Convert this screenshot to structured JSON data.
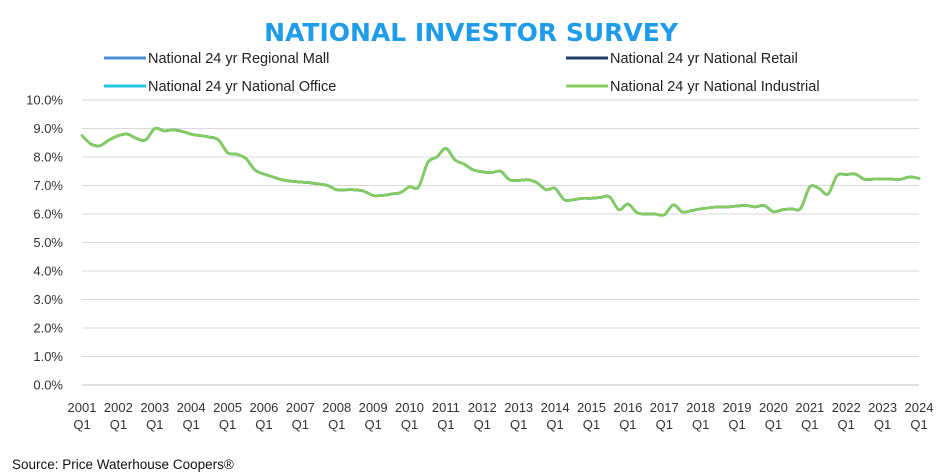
{
  "chart_data": {
    "type": "line",
    "title": "NATIONAL INVESTOR SURVEY",
    "source": "Source: Price Waterhouse Coopers®",
    "ylim": [
      0,
      10
    ],
    "y_tick_labels": [
      "0.0%",
      "1.0%",
      "2.0%",
      "3.0%",
      "4.0%",
      "5.0%",
      "6.0%",
      "7.0%",
      "8.0%",
      "9.0%",
      "10.0%"
    ],
    "x_tick_labels": [
      {
        "year": "2001",
        "quarter": "Q1"
      },
      {
        "year": "2002",
        "quarter": "Q1"
      },
      {
        "year": "2003",
        "quarter": "Q1"
      },
      {
        "year": "2004",
        "quarter": "Q1"
      },
      {
        "year": "2005",
        "quarter": "Q1"
      },
      {
        "year": "2006",
        "quarter": "Q1"
      },
      {
        "year": "2007",
        "quarter": "Q1"
      },
      {
        "year": "2008",
        "quarter": "Q1"
      },
      {
        "year": "2009",
        "quarter": "Q1"
      },
      {
        "year": "2010",
        "quarter": "Q1"
      },
      {
        "year": "2011",
        "quarter": "Q1"
      },
      {
        "year": "2012",
        "quarter": "Q1"
      },
      {
        "year": "2013",
        "quarter": "Q1"
      },
      {
        "year": "2014",
        "quarter": "Q1"
      },
      {
        "year": "2015",
        "quarter": "Q1"
      },
      {
        "year": "2016",
        "quarter": "Q1"
      },
      {
        "year": "2017",
        "quarter": "Q1"
      },
      {
        "year": "2018",
        "quarter": "Q1"
      },
      {
        "year": "2019",
        "quarter": "Q1"
      },
      {
        "year": "2020",
        "quarter": "Q1"
      },
      {
        "year": "2021",
        "quarter": "Q1"
      },
      {
        "year": "2022",
        "quarter": "Q1"
      },
      {
        "year": "2023",
        "quarter": "Q1"
      },
      {
        "year": "2024",
        "quarter": "Q1"
      }
    ],
    "grid": true,
    "legend_position": "top",
    "colors": {
      "title": "#1e9be9",
      "regional_mall": "#4a90d9",
      "national_retail": "#1f3f66",
      "national_office": "#22c7ee",
      "national_industrial": "#86cc5a",
      "grid": "#d9d9d9",
      "axis": "#bfbfbf"
    },
    "base_series": [
      [
        2001.0,
        8.75
      ],
      [
        2001.25,
        8.45
      ],
      [
        2001.5,
        8.4
      ],
      [
        2001.75,
        8.6
      ],
      [
        2002.0,
        8.75
      ],
      [
        2002.25,
        8.8
      ],
      [
        2002.5,
        8.65
      ],
      [
        2002.75,
        8.6
      ],
      [
        2003.0,
        9.0
      ],
      [
        2003.25,
        8.92
      ],
      [
        2003.5,
        8.95
      ],
      [
        2003.75,
        8.9
      ],
      [
        2004.0,
        8.8
      ],
      [
        2004.25,
        8.75
      ],
      [
        2004.5,
        8.7
      ],
      [
        2004.75,
        8.6
      ],
      [
        2005.0,
        8.15
      ],
      [
        2005.25,
        8.1
      ],
      [
        2005.5,
        7.95
      ],
      [
        2005.75,
        7.55
      ],
      [
        2006.0,
        7.4
      ],
      [
        2006.25,
        7.3
      ],
      [
        2006.5,
        7.2
      ],
      [
        2006.75,
        7.15
      ],
      [
        2007.0,
        7.12
      ],
      [
        2007.25,
        7.1
      ],
      [
        2007.5,
        7.05
      ],
      [
        2007.75,
        7.0
      ],
      [
        2008.0,
        6.85
      ],
      [
        2008.25,
        6.85
      ],
      [
        2008.5,
        6.85
      ],
      [
        2008.75,
        6.8
      ],
      [
        2009.0,
        6.65
      ],
      [
        2009.25,
        6.65
      ],
      [
        2009.5,
        6.7
      ],
      [
        2009.75,
        6.75
      ],
      [
        2010.0,
        6.95
      ],
      [
        2010.25,
        6.95
      ],
      [
        2010.5,
        7.8
      ],
      [
        2010.75,
        8.0
      ],
      [
        2011.0,
        8.3
      ],
      [
        2011.25,
        7.9
      ],
      [
        2011.5,
        7.75
      ],
      [
        2011.75,
        7.55
      ],
      [
        2012.0,
        7.48
      ],
      [
        2012.25,
        7.45
      ],
      [
        2012.5,
        7.5
      ],
      [
        2012.75,
        7.2
      ],
      [
        2013.0,
        7.18
      ],
      [
        2013.25,
        7.2
      ],
      [
        2013.5,
        7.1
      ],
      [
        2013.75,
        6.85
      ],
      [
        2014.0,
        6.9
      ],
      [
        2014.25,
        6.5
      ],
      [
        2014.5,
        6.5
      ],
      [
        2014.75,
        6.55
      ],
      [
        2015.0,
        6.55
      ],
      [
        2015.25,
        6.58
      ],
      [
        2015.5,
        6.6
      ],
      [
        2015.75,
        6.15
      ],
      [
        2016.0,
        6.35
      ],
      [
        2016.25,
        6.05
      ],
      [
        2016.5,
        6.0
      ],
      [
        2016.75,
        6.0
      ],
      [
        2017.0,
        5.97
      ],
      [
        2017.25,
        6.32
      ],
      [
        2017.5,
        6.07
      ],
      [
        2017.75,
        6.12
      ],
      [
        2018.0,
        6.18
      ],
      [
        2018.25,
        6.22
      ],
      [
        2018.5,
        6.25
      ],
      [
        2018.75,
        6.25
      ],
      [
        2019.0,
        6.28
      ],
      [
        2019.25,
        6.3
      ],
      [
        2019.5,
        6.25
      ],
      [
        2019.75,
        6.3
      ],
      [
        2020.0,
        6.08
      ],
      [
        2020.25,
        6.15
      ],
      [
        2020.5,
        6.18
      ],
      [
        2020.75,
        6.2
      ],
      [
        2021.0,
        6.95
      ],
      [
        2021.25,
        6.9
      ],
      [
        2021.5,
        6.7
      ],
      [
        2021.75,
        7.35
      ],
      [
        2022.0,
        7.38
      ],
      [
        2022.25,
        7.4
      ],
      [
        2022.5,
        7.22
      ],
      [
        2022.75,
        7.22
      ],
      [
        2023.0,
        7.22
      ],
      [
        2023.25,
        7.22
      ],
      [
        2023.5,
        7.22
      ],
      [
        2023.75,
        7.3
      ],
      [
        2024.0,
        7.25
      ]
    ],
    "series": [
      {
        "name": "National 24 yr Regional Mall",
        "color_key": "regional_mall",
        "offset": 0.0
      },
      {
        "name": "National 24 yr National Retail",
        "color_key": "national_retail",
        "offset": 0.0
      },
      {
        "name": "National 24 yr National Office",
        "color_key": "national_office",
        "offset": 0.0
      },
      {
        "name": "National 24 yr National Industrial",
        "color_key": "national_industrial",
        "offset": 0.0
      }
    ]
  }
}
